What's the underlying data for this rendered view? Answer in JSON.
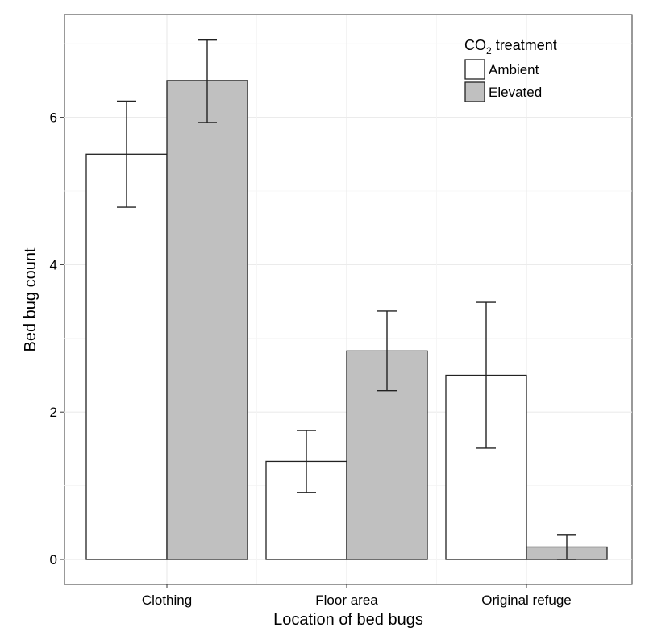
{
  "chart_data": {
    "type": "bar",
    "xlabel": "Location of bed bugs",
    "ylabel": "Bed bug count",
    "categories": [
      "Clothing",
      "Floor area",
      "Original refuge"
    ],
    "ylim": [
      -0.25,
      7.3
    ],
    "yticks": [
      0,
      2,
      4,
      6
    ],
    "grid": true,
    "legend": {
      "title_main": "CO",
      "title_sub": "2",
      "title_rest": " treatment",
      "placement": "top-right"
    },
    "series": [
      {
        "name": "Ambient",
        "color": "#ffffff",
        "values": [
          5.5,
          1.33,
          2.5
        ],
        "err_low": [
          4.78,
          0.91,
          1.51
        ],
        "err_high": [
          6.22,
          1.75,
          3.49
        ]
      },
      {
        "name": "Elevated",
        "color": "#c0c0c0",
        "values": [
          6.5,
          2.83,
          0.17
        ],
        "err_low": [
          5.93,
          2.29,
          0.0
        ],
        "err_high": [
          7.05,
          3.37,
          0.33
        ]
      }
    ]
  }
}
